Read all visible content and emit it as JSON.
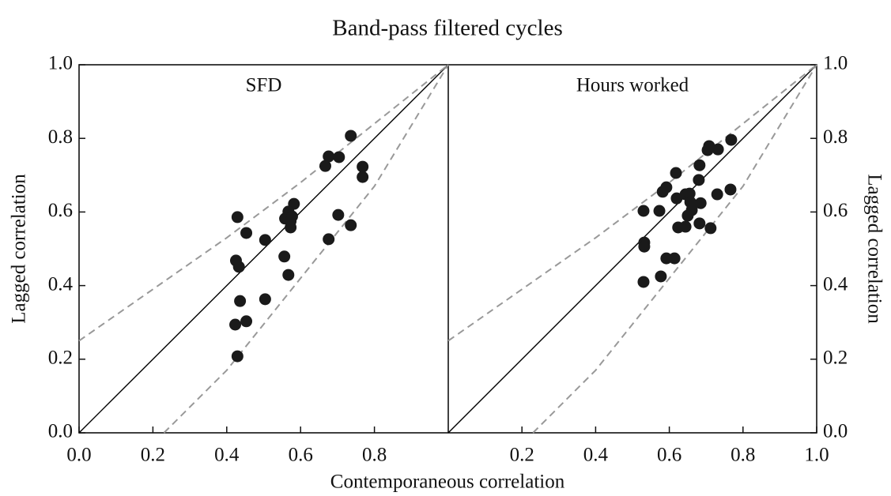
{
  "chart_data": {
    "type": "scatter",
    "title": "Band-pass filtered cycles",
    "xlabel": "Contemporaneous correlation",
    "ylabel": "Lagged correlation",
    "y2label": "Lagged correlation",
    "panels": [
      {
        "panel_title": "SFD",
        "yaxis_side": "left",
        "xlim": [
          0,
          1
        ],
        "ylim": [
          0,
          1
        ],
        "xticks": [
          {
            "value": 0,
            "label": "0.0"
          },
          0.2,
          0.4,
          0.6,
          0.8
        ],
        "yticks": [
          {
            "value": 0,
            "label": "0.0"
          },
          0.2,
          0.4,
          0.6,
          0.8,
          {
            "value": 1,
            "label": "1.0"
          }
        ],
        "reference_lines": [
          {
            "x": [
              0,
              1
            ],
            "values": [
              0,
              1
            ],
            "color": "#000000",
            "dashed": false
          },
          {
            "x": [
              0,
              0.2,
              0.4,
              0.6,
              0.8,
              1
            ],
            "values": [
              0.25,
              0.39,
              0.53,
              0.68,
              0.84,
              1
            ],
            "color": "#999999",
            "dashed": true
          },
          {
            "x": [
              0.23,
              0.4,
              0.6,
              0.8,
              1
            ],
            "values": [
              0,
              0.17,
              0.42,
              0.67,
              1
            ],
            "color": "#999999",
            "dashed": true
          }
        ],
        "series": [
          {
            "color": "#1a1a1a",
            "x": [
              0.736,
              0.676,
              0.704,
              0.667,
              0.768,
              0.768,
              0.582,
              0.567,
              0.558,
              0.577,
              0.573,
              0.573,
              0.702,
              0.676,
              0.736,
              0.429,
              0.453,
              0.504,
              0.425,
              0.433,
              0.556,
              0.567,
              0.436,
              0.504,
              0.453,
              0.423,
              0.429
            ],
            "values": [
              0.807,
              0.751,
              0.749,
              0.725,
              0.723,
              0.695,
              0.622,
              0.601,
              0.582,
              0.588,
              0.575,
              0.558,
              0.592,
              0.526,
              0.564,
              0.586,
              0.543,
              0.524,
              0.468,
              0.451,
              0.479,
              0.429,
              0.358,
              0.363,
              0.303,
              0.294,
              0.208
            ]
          }
        ]
      },
      {
        "panel_title": "Hours worked",
        "yaxis_side": "right",
        "xlim": [
          0,
          1
        ],
        "ylim": [
          0,
          1
        ],
        "xticks": [
          0.2,
          0.4,
          0.6,
          0.8,
          {
            "value": 1,
            "label": "1.0"
          }
        ],
        "yticks": [
          {
            "value": 0,
            "label": "0.0"
          },
          0.2,
          0.4,
          0.6,
          0.8,
          {
            "value": 1,
            "label": "1.0"
          }
        ],
        "reference_lines": [
          {
            "x": [
              0,
              1
            ],
            "values": [
              0,
              1
            ],
            "color": "#000000",
            "dashed": false
          },
          {
            "x": [
              0,
              0.2,
              0.4,
              0.6,
              0.8,
              1
            ],
            "values": [
              0.25,
              0.39,
              0.53,
              0.68,
              0.84,
              1
            ],
            "color": "#999999",
            "dashed": true
          },
          {
            "x": [
              0.23,
              0.4,
              0.6,
              0.8,
              1
            ],
            "values": [
              0,
              0.17,
              0.42,
              0.67,
              1
            ],
            "color": "#999999",
            "dashed": true
          }
        ],
        "series": [
          {
            "color": "#1a1a1a",
            "x": [
              0.768,
              0.732,
              0.708,
              0.704,
              0.682,
              0.68,
              0.582,
              0.592,
              0.618,
              0.62,
              0.644,
              0.655,
              0.657,
              0.661,
              0.685,
              0.65,
              0.73,
              0.766,
              0.573,
              0.624,
              0.644,
              0.682,
              0.712,
              0.53,
              0.532,
              0.532,
              0.53,
              0.592,
              0.614,
              0.577
            ],
            "values": [
              0.796,
              0.77,
              0.779,
              0.768,
              0.727,
              0.687,
              0.655,
              0.667,
              0.706,
              0.637,
              0.648,
              0.65,
              0.627,
              0.605,
              0.624,
              0.59,
              0.648,
              0.661,
              0.603,
              0.558,
              0.56,
              0.569,
              0.556,
              0.603,
              0.517,
              0.506,
              0.41,
              0.474,
              0.474,
              0.425
            ]
          }
        ]
      }
    ]
  }
}
